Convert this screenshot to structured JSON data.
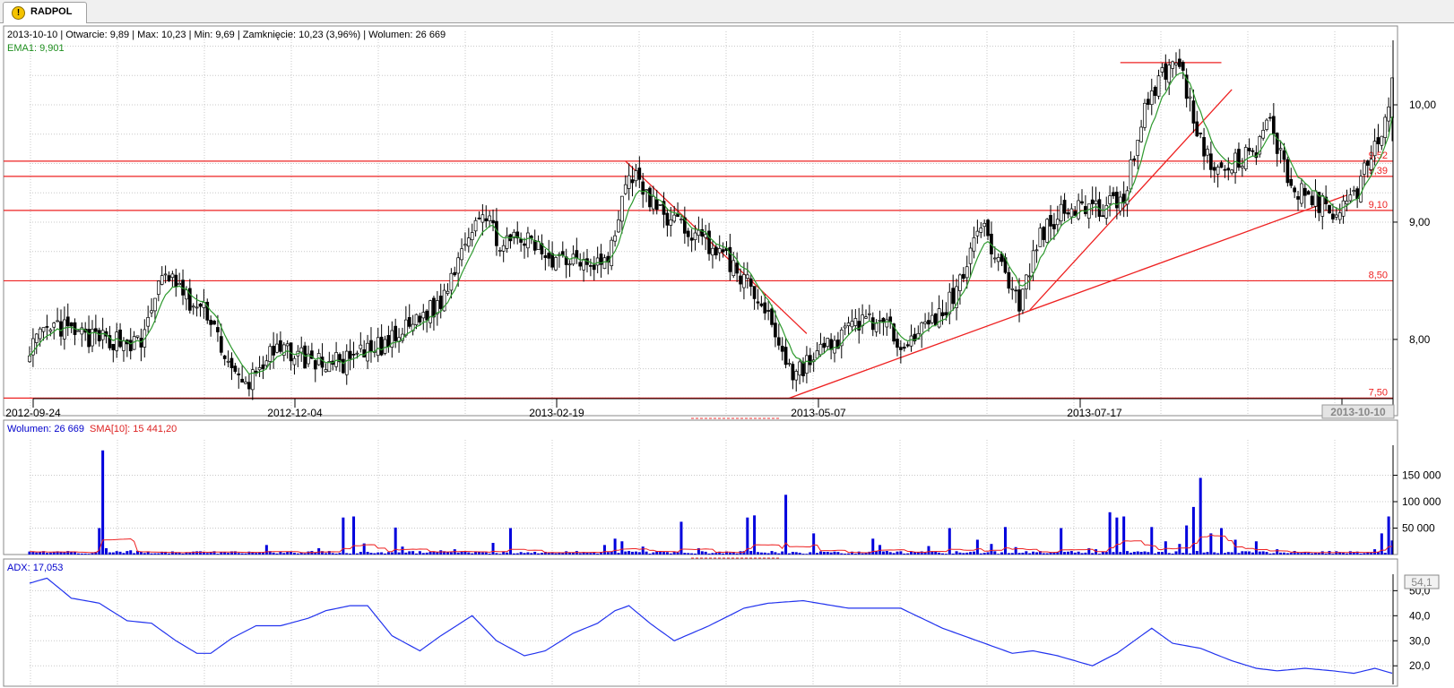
{
  "tab": {
    "label": "RADPOL",
    "icon": "warning-icon"
  },
  "price_panel": {
    "info_line": "2013-10-10 | Otwarcie: 9,89 | Max: 10,23 | Min: 9,69 | Zamknięcie: 10,23 (3,96%)  | Wolumen: 26 669",
    "ema_label": "EMA1: 9,901",
    "current_date_box": "2013-10-10"
  },
  "volume_panel": {
    "volume_label": "Wolumen: 26 669",
    "sma_label": "SMA[10]: 15 441,20"
  },
  "adx_panel": {
    "adx_label": "ADX: 17,053",
    "value_box": "54,1"
  },
  "colors": {
    "up": "#ffffff",
    "down": "#000000",
    "ema": "#2e9a2e",
    "lines": "#ee2222",
    "volume": "#0000dd",
    "sma": "#ee2222",
    "adx": "#2233ee",
    "grid": "#c8c8c8"
  },
  "chart_data": [
    {
      "type": "candlestick",
      "x_ticks": [
        "2012-09-24",
        "2012-12-04",
        "2013-02-19",
        "2013-05-07",
        "2013-07-17",
        "2013-10-10"
      ],
      "y_ticks": [
        {
          "v": 8.0,
          "label": "8,00"
        },
        {
          "v": 9.0,
          "label": "9,00"
        },
        {
          "v": 10.0,
          "label": "10,00"
        }
      ],
      "ylim": [
        7.35,
        10.55
      ],
      "horizontal_levels": [
        {
          "v": 9.52,
          "label": "9,52"
        },
        {
          "v": 9.39,
          "label": "9,39"
        },
        {
          "v": 9.1,
          "label": "9,10"
        },
        {
          "v": 8.5,
          "label": "8,50"
        },
        {
          "v": 7.5,
          "label": "7,50"
        }
      ],
      "trend_lines": [
        {
          "from": [
            171,
            9.52
          ],
          "to": [
            223,
            8.05
          ]
        },
        {
          "from": [
            218,
            7.5
          ],
          "to": [
            378,
            9.23
          ]
        },
        {
          "from": [
            287,
            8.25
          ],
          "to": [
            345,
            10.13
          ]
        },
        {
          "from": [
            313,
            10.36
          ],
          "to": [
            342,
            10.36
          ]
        }
      ],
      "last": {
        "open": 9.89,
        "high": 10.23,
        "low": 9.69,
        "close": 10.23,
        "change": "3,96%",
        "volume": 26669,
        "ema": 9.901
      },
      "anchors": [
        [
          0,
          7.95
        ],
        [
          8,
          8.1
        ],
        [
          18,
          8.0
        ],
        [
          25,
          8.0
        ],
        [
          32,
          7.95
        ],
        [
          36,
          8.4
        ],
        [
          40,
          8.55
        ],
        [
          46,
          8.3
        ],
        [
          52,
          8.2
        ],
        [
          58,
          7.7
        ],
        [
          62,
          7.6
        ],
        [
          68,
          7.85
        ],
        [
          75,
          7.9
        ],
        [
          82,
          7.8
        ],
        [
          90,
          7.8
        ],
        [
          98,
          7.9
        ],
        [
          105,
          8.0
        ],
        [
          112,
          8.2
        ],
        [
          118,
          8.3
        ],
        [
          124,
          8.8
        ],
        [
          129,
          9.1
        ],
        [
          136,
          8.8
        ],
        [
          142,
          8.85
        ],
        [
          150,
          8.7
        ],
        [
          158,
          8.7
        ],
        [
          166,
          8.65
        ],
        [
          172,
          9.45
        ],
        [
          180,
          9.1
        ],
        [
          188,
          8.95
        ],
        [
          196,
          8.8
        ],
        [
          204,
          8.55
        ],
        [
          212,
          8.2
        ],
        [
          219,
          7.7
        ],
        [
          225,
          7.85
        ],
        [
          232,
          8.0
        ],
        [
          240,
          8.2
        ],
        [
          250,
          8.0
        ],
        [
          258,
          8.1
        ],
        [
          266,
          8.4
        ],
        [
          272,
          9.0
        ],
        [
          278,
          8.7
        ],
        [
          284,
          8.3
        ],
        [
          290,
          8.9
        ],
        [
          298,
          9.15
        ],
        [
          306,
          9.1
        ],
        [
          314,
          9.2
        ],
        [
          320,
          10.0
        ],
        [
          326,
          10.3
        ],
        [
          330,
          10.35
        ],
        [
          334,
          9.9
        ],
        [
          340,
          9.4
        ],
        [
          346,
          9.5
        ],
        [
          352,
          9.6
        ],
        [
          356,
          9.85
        ],
        [
          362,
          9.3
        ],
        [
          368,
          9.2
        ],
        [
          374,
          9.1
        ],
        [
          380,
          9.2
        ],
        [
          386,
          9.7
        ],
        [
          389,
          9.85
        ],
        [
          391,
          10.23
        ]
      ],
      "ema_line_name": "EMA1"
    },
    {
      "type": "bar",
      "y_ticks": [
        {
          "v": 50000,
          "label": "50 000"
        },
        {
          "v": 100000,
          "label": "100 000"
        },
        {
          "v": 150000,
          "label": "150 000"
        }
      ],
      "ylim": [
        0,
        200000
      ],
      "base_volume": 4500,
      "spikes": [
        [
          20,
          50000
        ],
        [
          21,
          197000
        ],
        [
          22,
          12000
        ],
        [
          29,
          8000
        ],
        [
          31,
          7000
        ],
        [
          68,
          18000
        ],
        [
          83,
          12000
        ],
        [
          90,
          70000
        ],
        [
          93,
          72000
        ],
        [
          96,
          21000
        ],
        [
          105,
          51000
        ],
        [
          107,
          15000
        ],
        [
          118,
          8000
        ],
        [
          122,
          10000
        ],
        [
          133,
          22000
        ],
        [
          138,
          50000
        ],
        [
          165,
          18000
        ],
        [
          168,
          30000
        ],
        [
          170,
          25000
        ],
        [
          176,
          15000
        ],
        [
          187,
          62000
        ],
        [
          192,
          12000
        ],
        [
          206,
          70000
        ],
        [
          208,
          74000
        ],
        [
          217,
          113000
        ],
        [
          225,
          40000
        ],
        [
          242,
          30000
        ],
        [
          244,
          18000
        ],
        [
          258,
          16000
        ],
        [
          264,
          50000
        ],
        [
          272,
          28000
        ],
        [
          276,
          20000
        ],
        [
          280,
          52000
        ],
        [
          283,
          14000
        ],
        [
          296,
          50000
        ],
        [
          304,
          12000
        ],
        [
          306,
          10000
        ],
        [
          310,
          80000
        ],
        [
          312,
          70000
        ],
        [
          314,
          72000
        ],
        [
          322,
          52000
        ],
        [
          326,
          25000
        ],
        [
          330,
          20000
        ],
        [
          332,
          55000
        ],
        [
          334,
          90000
        ],
        [
          336,
          145000
        ],
        [
          339,
          40000
        ],
        [
          342,
          50000
        ],
        [
          346,
          28000
        ],
        [
          352,
          25000
        ],
        [
          358,
          10000
        ],
        [
          386,
          10000
        ],
        [
          388,
          40000
        ],
        [
          390,
          72000
        ],
        [
          391,
          26669
        ]
      ],
      "sma_name": "SMA[10]",
      "sma_last": 15441.2
    },
    {
      "type": "line",
      "y_ticks": [
        {
          "v": 20,
          "label": "20,0"
        },
        {
          "v": 30,
          "label": "30,0"
        },
        {
          "v": 40,
          "label": "40,0"
        },
        {
          "v": 50,
          "label": "50,0"
        }
      ],
      "ylim": [
        14,
        58
      ],
      "series": [
        {
          "name": "ADX",
          "points": [
            [
              0,
              53
            ],
            [
              5,
              55
            ],
            [
              12,
              47
            ],
            [
              20,
              45
            ],
            [
              28,
              38
            ],
            [
              35,
              37
            ],
            [
              42,
              30
            ],
            [
              48,
              25
            ],
            [
              52,
              25
            ],
            [
              58,
              31
            ],
            [
              65,
              36
            ],
            [
              72,
              36
            ],
            [
              80,
              39
            ],
            [
              85,
              42
            ],
            [
              92,
              44
            ],
            [
              97,
              44
            ],
            [
              104,
              32
            ],
            [
              112,
              26
            ],
            [
              118,
              32
            ],
            [
              127,
              40
            ],
            [
              134,
              30
            ],
            [
              142,
              24
            ],
            [
              148,
              26
            ],
            [
              156,
              33
            ],
            [
              163,
              37
            ],
            [
              168,
              42
            ],
            [
              172,
              44
            ],
            [
              178,
              37
            ],
            [
              185,
              30
            ],
            [
              195,
              36
            ],
            [
              205,
              43
            ],
            [
              212,
              45
            ],
            [
              222,
              46
            ],
            [
              235,
              43
            ],
            [
              250,
              43
            ],
            [
              262,
              35
            ],
            [
              272,
              30
            ],
            [
              282,
              25
            ],
            [
              288,
              26
            ],
            [
              295,
              24
            ],
            [
              305,
              20
            ],
            [
              312,
              25
            ],
            [
              318,
              31
            ],
            [
              322,
              35
            ],
            [
              328,
              29
            ],
            [
              336,
              27
            ],
            [
              345,
              22
            ],
            [
              352,
              19
            ],
            [
              358,
              18
            ],
            [
              366,
              19
            ],
            [
              374,
              18
            ],
            [
              380,
              17
            ],
            [
              386,
              19
            ],
            [
              391,
              17.05
            ]
          ]
        }
      ]
    }
  ]
}
